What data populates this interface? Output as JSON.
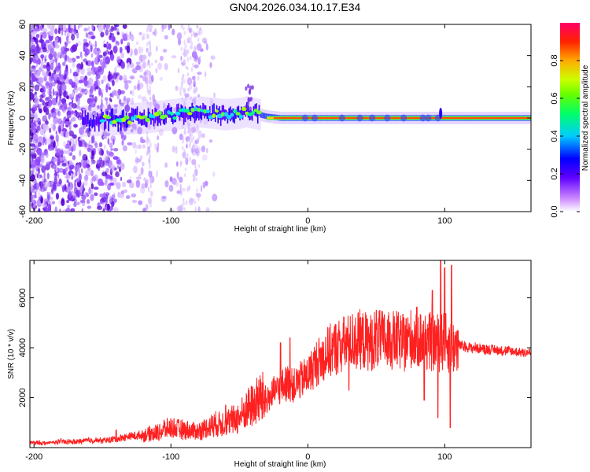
{
  "title": "GN04.2026.034.10.17.E34",
  "chart_data": [
    {
      "type": "heatmap",
      "name": "spectrogram",
      "xlabel": "Height of straight line (km)",
      "ylabel": "Frequency (Hz)",
      "xlim": [
        -203,
        163
      ],
      "ylim": [
        -60,
        60
      ],
      "xticks": [
        -200,
        -100,
        0,
        100
      ],
      "yticks": [
        60,
        40,
        20,
        0,
        -20,
        -40,
        -60
      ],
      "colorbar": {
        "label": "Normalized spectral amplitude",
        "range": [
          0,
          1
        ],
        "ticks": [
          0.0,
          0.2,
          0.4,
          0.6,
          0.8
        ]
      },
      "ridge": {
        "x": [
          -160,
          -140,
          -120,
          -100,
          -80,
          -70,
          -60,
          -50,
          -45,
          -40,
          -30,
          -20,
          0,
          20,
          40,
          60,
          80,
          95,
          100,
          163
        ],
        "y": [
          -2,
          -1,
          0,
          2,
          4,
          3,
          2,
          3,
          4,
          3,
          1,
          0,
          0,
          0,
          0,
          0,
          0,
          0,
          0,
          0
        ]
      }
    },
    {
      "type": "line",
      "name": "snr",
      "xlabel": "Height of straight line (km)",
      "ylabel": "SNR (10 * v/v)",
      "xlim": [
        -203,
        163
      ],
      "ylim": [
        0,
        7500
      ],
      "xticks": [
        -200,
        -100,
        0,
        100
      ],
      "yticks": [
        2000,
        4000,
        6000
      ],
      "color": "#ff2020",
      "series": [
        {
          "name": "SNR",
          "x": [
            -203,
            -190,
            -180,
            -170,
            -160,
            -150,
            -140,
            -130,
            -120,
            -110,
            -100,
            -90,
            -80,
            -70,
            -60,
            -50,
            -45,
            -40,
            -35,
            -30,
            -25,
            -20,
            -15,
            -10,
            -5,
            0,
            5,
            10,
            15,
            20,
            25,
            30,
            35,
            40,
            45,
            50,
            55,
            60,
            65,
            70,
            75,
            80,
            85,
            90,
            95,
            100,
            105,
            110,
            120,
            130,
            140,
            150,
            163
          ],
          "y": [
            200,
            180,
            250,
            220,
            300,
            280,
            350,
            450,
            500,
            600,
            800,
            700,
            650,
            900,
            1000,
            1200,
            1500,
            1700,
            2000,
            1900,
            2200,
            2400,
            2600,
            2500,
            2700,
            2900,
            3300,
            3600,
            3800,
            4000,
            4100,
            4200,
            4300,
            4300,
            4200,
            4350,
            4300,
            4250,
            4300,
            4200,
            4350,
            4400,
            4300,
            4250,
            4200,
            4300,
            4000,
            4100,
            4000,
            3950,
            3900,
            3850,
            3800
          ]
        }
      ],
      "spikes": {
        "x": [
          -140,
          -105,
          -60,
          -20,
          -13,
          30,
          50,
          60,
          70,
          85,
          91,
          95,
          97,
          100,
          104,
          105
        ],
        "y": [
          700,
          1100,
          1700,
          4200,
          4400,
          2300,
          5500,
          5000,
          5200,
          1900,
          6300,
          1200,
          7500,
          7200,
          800,
          7300
        ]
      }
    }
  ]
}
